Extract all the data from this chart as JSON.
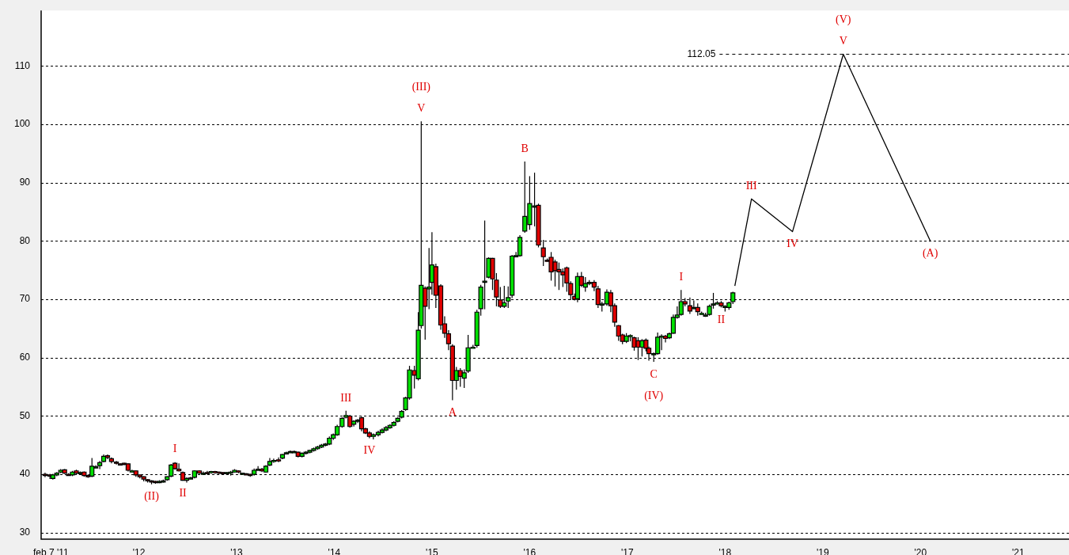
{
  "chart_data": {
    "type": "candlestick",
    "x": [
      2011.04,
      2011.09,
      2011.12,
      2011.16,
      2011.2,
      2011.24,
      2011.28,
      2011.32,
      2011.36,
      2011.4,
      2011.44,
      2011.48,
      2011.52,
      2011.56,
      2011.6,
      2011.64,
      2011.68,
      2011.72,
      2011.77,
      2011.81,
      2011.85,
      2011.89,
      2011.93,
      2011.97,
      2012.01,
      2012.05,
      2012.09,
      2012.13,
      2012.17,
      2012.21,
      2012.25,
      2012.29,
      2012.33,
      2012.37,
      2012.41,
      2012.45,
      2012.49,
      2012.53,
      2012.57,
      2012.62,
      2012.66,
      2012.7,
      2012.74,
      2012.78,
      2012.82,
      2012.86,
      2012.9,
      2012.94,
      2012.98,
      2013.02,
      2013.06,
      2013.1,
      2013.14,
      2013.18,
      2013.22,
      2013.26,
      2013.3,
      2013.34,
      2013.38,
      2013.43,
      2013.47,
      2013.51,
      2013.55,
      2013.59,
      2013.63,
      2013.67,
      2013.71,
      2013.75,
      2013.79,
      2013.83,
      2013.87,
      2013.91,
      2013.95,
      2013.99,
      2014.03,
      2014.08,
      2014.12,
      2014.16,
      2014.2,
      2014.24,
      2014.28,
      2014.32,
      2014.36,
      2014.4,
      2014.45,
      2014.49,
      2014.53,
      2014.57,
      2014.61,
      2014.65,
      2014.69,
      2014.73,
      2014.77,
      2014.82,
      2014.86,
      2014.89,
      2014.93,
      2014.97,
      2015.0,
      2015.04,
      2015.09,
      2015.13,
      2015.17,
      2015.21,
      2015.25,
      2015.29,
      2015.33,
      2015.37,
      2015.42,
      2015.46,
      2015.5,
      2015.54,
      2015.58,
      2015.62,
      2015.66,
      2015.7,
      2015.74,
      2015.78,
      2015.82,
      2015.86,
      2015.9,
      2015.95,
      2016.0,
      2016.05,
      2016.09,
      2016.14,
      2016.18,
      2016.22,
      2016.26,
      2016.3,
      2016.34,
      2016.38,
      2016.42,
      2016.46,
      2016.49,
      2016.53,
      2016.57,
      2016.61,
      2016.66,
      2016.7,
      2016.74,
      2016.79,
      2016.83,
      2016.87,
      2016.91,
      2016.95,
      2016.99,
      2017.03,
      2017.07,
      2017.11,
      2017.15,
      2017.19,
      2017.22,
      2017.27,
      2017.31,
      2017.35,
      2017.39,
      2017.43,
      2017.47,
      2017.51,
      2017.55,
      2017.59,
      2017.64,
      2017.68,
      2017.72,
      2017.76,
      2017.8,
      2017.84,
      2017.88,
      2017.92,
      2017.96,
      2018.0,
      2018.04,
      2018.08
    ],
    "ohlc": [
      [
        40,
        40.3,
        39.5,
        39.9
      ],
      [
        39.9,
        40.1,
        39.2,
        39.7
      ],
      [
        39.3,
        40.1,
        39.1,
        39.9
      ],
      [
        39.9,
        40.4,
        39.7,
        40.2
      ],
      [
        40.4,
        40.9,
        40.2,
        40.7
      ],
      [
        40.8,
        40.9,
        40.1,
        40.2
      ],
      [
        40,
        40.2,
        39.8,
        39.9
      ],
      [
        39.9,
        40.6,
        39.7,
        40.4
      ],
      [
        40.6,
        40.8,
        39.9,
        40.2
      ],
      [
        40.3,
        40.5,
        40,
        40.3
      ],
      [
        40.4,
        40.5,
        39.6,
        39.8
      ],
      [
        39.8,
        40,
        39.4,
        39.7
      ],
      [
        39.7,
        42.8,
        39.5,
        41.4
      ],
      [
        41.3,
        41.6,
        41.1,
        41.3
      ],
      [
        41.5,
        42.3,
        40.9,
        42
      ],
      [
        42.2,
        43.4,
        42.1,
        43.1
      ],
      [
        43.2,
        43.4,
        42.6,
        42.9
      ],
      [
        42.7,
        42.9,
        41.9,
        42.2
      ],
      [
        42.1,
        42.3,
        41.7,
        41.9
      ],
      [
        41.8,
        41.9,
        41.6,
        41.7
      ],
      [
        41.9,
        42,
        41.6,
        41.8
      ],
      [
        41.8,
        41.9,
        40.5,
        40.7
      ],
      [
        40.6,
        40.8,
        40.4,
        40.6
      ],
      [
        40.6,
        40.7,
        39.6,
        39.9
      ],
      [
        39.9,
        40,
        39.3,
        39.6
      ],
      [
        39.6,
        39.7,
        38.8,
        39.2
      ],
      [
        39.1,
        39.2,
        38.6,
        38.9
      ],
      [
        38.9,
        39,
        38.3,
        38.8
      ],
      [
        38.8,
        38.9,
        38.4,
        38.7
      ],
      [
        38.8,
        39,
        38.5,
        38.8
      ],
      [
        38.9,
        39.1,
        38.6,
        38.9
      ],
      [
        39.1,
        39.7,
        38.9,
        39.6
      ],
      [
        39.7,
        41.8,
        39.5,
        41.6
      ],
      [
        41.9,
        42.1,
        40.8,
        41
      ],
      [
        40.9,
        41.9,
        40.5,
        40.6
      ],
      [
        40.3,
        40.5,
        38.9,
        39
      ],
      [
        39,
        39.5,
        38.6,
        39.3
      ],
      [
        39.4,
        39.6,
        39.2,
        39.4
      ],
      [
        39.5,
        40.7,
        39.3,
        40.6
      ],
      [
        40.6,
        40.7,
        40.1,
        40.2
      ],
      [
        40.2,
        40.5,
        40.1,
        40.2
      ],
      [
        40.3,
        40.6,
        40.1,
        40.2
      ],
      [
        40.3,
        40.6,
        40.1,
        40.5
      ],
      [
        40.5,
        40.6,
        40.1,
        40.3
      ],
      [
        40.4,
        40.5,
        40,
        40.2
      ],
      [
        40.3,
        40.4,
        39.9,
        40.2
      ],
      [
        40.3,
        40.4,
        40.1,
        40.3
      ],
      [
        40.2,
        40.6,
        39.8,
        40.4
      ],
      [
        40.4,
        40.9,
        40.3,
        40.7
      ],
      [
        40.6,
        40.7,
        40.2,
        40.4
      ],
      [
        40.2,
        40.3,
        40,
        40.2
      ],
      [
        40.1,
        40.2,
        39.9,
        40
      ],
      [
        40,
        40.1,
        39.6,
        39.8
      ],
      [
        40,
        41,
        39.8,
        40.7
      ],
      [
        40.8,
        41.4,
        40.7,
        40.9
      ],
      [
        40.9,
        41.1,
        40.4,
        40.6
      ],
      [
        40.4,
        41.6,
        40.3,
        41.4
      ],
      [
        41.6,
        42.8,
        41.4,
        42.2
      ],
      [
        42.3,
        42.7,
        42,
        42.4
      ],
      [
        42.5,
        42.9,
        42.1,
        42.3
      ],
      [
        42.8,
        43.5,
        42.6,
        43.4
      ],
      [
        43.6,
        43.9,
        43.5,
        43.7
      ],
      [
        43.9,
        44.1,
        43.7,
        43.9
      ],
      [
        43.9,
        44.1,
        43.8,
        43.9
      ],
      [
        43.8,
        43.9,
        42.9,
        43.1
      ],
      [
        43.1,
        43.8,
        42.9,
        43.6
      ],
      [
        43.6,
        44,
        43.4,
        43.8
      ],
      [
        43.8,
        44.2,
        43.6,
        44.1
      ],
      [
        44.1,
        44.6,
        43.9,
        44.4
      ],
      [
        44.4,
        44.9,
        44.2,
        44.7
      ],
      [
        44.7,
        45.2,
        44.5,
        45
      ],
      [
        45,
        45.4,
        44.8,
        45.2
      ],
      [
        45.2,
        46.5,
        45,
        46.2
      ],
      [
        46.2,
        47,
        45.9,
        46.8
      ],
      [
        46.8,
        48.5,
        46.6,
        48.2
      ],
      [
        48.2,
        49.8,
        48,
        49.6
      ],
      [
        49.8,
        50.9,
        49.6,
        50.1
      ],
      [
        50,
        50.2,
        48,
        48.2
      ],
      [
        48.6,
        49.3,
        48.2,
        49.1
      ],
      [
        49.2,
        49.5,
        48.8,
        49.3
      ],
      [
        49.7,
        49.9,
        47.4,
        47.8
      ],
      [
        47.8,
        48,
        46.9,
        47.1
      ],
      [
        47.1,
        47.4,
        46.2,
        46.5
      ],
      [
        46.5,
        47,
        46,
        46.8
      ],
      [
        46.8,
        47.5,
        46.5,
        47.2
      ],
      [
        47.2,
        47.9,
        47,
        47.6
      ],
      [
        47.6,
        48.3,
        47.4,
        48
      ],
      [
        48,
        48.6,
        47.8,
        48.4
      ],
      [
        48.4,
        49.1,
        48.2,
        48.9
      ],
      [
        49.1,
        49.8,
        48.9,
        49.6
      ],
      [
        49.8,
        51,
        49.6,
        50.8
      ],
      [
        51.1,
        53.3,
        50.9,
        53.1
      ],
      [
        53.1,
        58.6,
        52.8,
        57.9
      ],
      [
        57.8,
        58.6,
        54.7,
        57
      ],
      [
        56.4,
        67.8,
        56.1,
        64.7
      ],
      [
        65.5,
        100.5,
        65,
        72.4
      ],
      [
        71.9,
        72.2,
        63.1,
        68.8
      ],
      [
        71.8,
        78.8,
        68.3,
        72.1
      ],
      [
        72.9,
        81.5,
        70.8,
        75.9
      ],
      [
        75.6,
        76.1,
        68.5,
        70.7
      ],
      [
        72.3,
        72.6,
        64.8,
        65.6
      ],
      [
        65.8,
        67.1,
        63.4,
        64.2
      ],
      [
        64.1,
        64.7,
        61.3,
        62.4
      ],
      [
        62,
        62.3,
        52.7,
        56.1
      ],
      [
        56.1,
        58.4,
        54.5,
        57.8
      ],
      [
        57.8,
        58.2,
        55,
        56.8
      ],
      [
        56.5,
        58,
        54.8,
        57.4
      ],
      [
        57.7,
        63.9,
        57.4,
        61.7
      ],
      [
        61.8,
        62.2,
        61.6,
        61.8
      ],
      [
        62.1,
        68.2,
        61.7,
        67.8
      ],
      [
        68.4,
        72.5,
        67.2,
        72.1
      ],
      [
        72.9,
        83.5,
        68.3,
        73.1
      ],
      [
        73.8,
        77.2,
        73.6,
        77
      ],
      [
        77,
        77.1,
        71.6,
        73.5
      ],
      [
        73.3,
        74.5,
        68.8,
        70.4
      ],
      [
        69.9,
        72.1,
        68.5,
        68.8
      ],
      [
        68.8,
        72.3,
        68.5,
        69.4
      ],
      [
        69.7,
        72.2,
        68.5,
        70.3
      ],
      [
        70.7,
        77.6,
        70.2,
        77.4
      ],
      [
        77.5,
        78.1,
        77.3,
        77.5
      ],
      [
        77.5,
        81,
        77.3,
        80.6
      ],
      [
        81.7,
        93.6,
        81.4,
        84.2
      ],
      [
        82.8,
        91.1,
        81.9,
        86.4
      ],
      [
        85.9,
        91.7,
        82.5,
        86
      ],
      [
        86.1,
        86.4,
        78.9,
        79.3
      ],
      [
        78.8,
        80.2,
        75.7,
        77.3
      ],
      [
        76.7,
        77,
        76.5,
        76.6
      ],
      [
        77.2,
        78.1,
        73.2,
        74.7
      ],
      [
        76.4,
        76.8,
        72.2,
        74.9
      ],
      [
        75.1,
        76.3,
        71.6,
        74.7
      ],
      [
        74.7,
        75.3,
        72.1,
        74.2
      ],
      [
        75.4,
        75.6,
        71.3,
        72.8
      ],
      [
        72.7,
        73.1,
        69.9,
        70.8
      ],
      [
        70.5,
        71,
        69.8,
        70
      ],
      [
        70.1,
        74.6,
        69.5,
        73.9
      ],
      [
        73.9,
        74.7,
        72.1,
        72.4
      ],
      [
        72.1,
        73.8,
        71.3,
        72.7
      ],
      [
        72.9,
        73.3,
        72.4,
        72.9
      ],
      [
        72.9,
        73.3,
        71.4,
        72.1
      ],
      [
        71.8,
        72.3,
        68.5,
        69.1
      ],
      [
        69.2,
        69.6,
        67.9,
        69.2
      ],
      [
        69.2,
        71.7,
        68.9,
        71.2
      ],
      [
        71.1,
        71.6,
        67.8,
        68.9
      ],
      [
        68.9,
        69.3,
        65.3,
        66.1
      ],
      [
        65.5,
        65.6,
        62.9,
        63.7
      ],
      [
        63.9,
        64.1,
        62.3,
        62.8
      ],
      [
        62.8,
        64.2,
        62.5,
        63.7
      ],
      [
        63.8,
        64,
        62.8,
        63.8
      ],
      [
        63.4,
        63.6,
        61.2,
        61.8
      ],
      [
        62.9,
        63.5,
        59.6,
        61.8
      ],
      [
        61.8,
        63.2,
        60.2,
        62.9
      ],
      [
        63,
        63.3,
        61.1,
        61.6
      ],
      [
        61.6,
        61.9,
        59.5,
        60.7
      ],
      [
        60.7,
        60.9,
        59.3,
        60.7
      ],
      [
        60.7,
        64.3,
        60.5,
        63.5
      ],
      [
        63.5,
        64,
        61.3,
        63.7
      ],
      [
        63.7,
        63.9,
        62.6,
        63.3
      ],
      [
        63.4,
        64.3,
        63.2,
        64.1
      ],
      [
        64.2,
        67.4,
        64.1,
        66.9
      ],
      [
        66.9,
        68.8,
        66.7,
        67.3
      ],
      [
        67.4,
        71.6,
        67.2,
        69.6
      ],
      [
        69.6,
        70.2,
        68.8,
        69.2
      ],
      [
        68.9,
        70.3,
        67.5,
        68
      ],
      [
        68.6,
        69.8,
        68.3,
        68.6
      ],
      [
        68.6,
        69.3,
        67.2,
        67.9
      ],
      [
        67.6,
        67.9,
        67.4,
        67.6
      ],
      [
        67.3,
        67.7,
        67,
        67.3
      ],
      [
        67.4,
        69.1,
        67.2,
        68.8
      ],
      [
        69,
        71.1,
        68.4,
        69.2
      ],
      [
        69.4,
        69.7,
        69.1,
        69.4
      ],
      [
        69.4,
        69.7,
        68.6,
        68.9
      ],
      [
        68.8,
        69,
        67.9,
        68.8
      ],
      [
        68.6,
        69.6,
        68.2,
        69.4
      ],
      [
        69.6,
        71.3,
        69.2,
        71.1
      ]
    ],
    "series": [
      {
        "type": "line",
        "color": "#000000",
        "x": [
          2018.1,
          2018.27,
          2018.69,
          2019.21,
          2020.1
        ],
        "values": [
          72.3,
          87.2,
          81.6,
          112.0,
          80.0
        ]
      }
    ],
    "xlim": [
      2011.0,
      2021.52
    ],
    "xticks": [
      {
        "value": 2011.1,
        "label": "feb 7 '11"
      },
      {
        "value": 2012,
        "label": "'12"
      },
      {
        "value": 2013,
        "label": "'13"
      },
      {
        "value": 2014,
        "label": "'14"
      },
      {
        "value": 2015,
        "label": "'15"
      },
      {
        "value": 2016,
        "label": "'16"
      },
      {
        "value": 2017,
        "label": "'17"
      },
      {
        "value": 2018,
        "label": "'18"
      },
      {
        "value": 2019,
        "label": "'19"
      },
      {
        "value": 2020,
        "label": "'20"
      },
      {
        "value": 2021,
        "label": "'21"
      }
    ],
    "ylim": [
      28.9,
      119.5
    ],
    "yticks": [
      30,
      40,
      50,
      60,
      70,
      80,
      90,
      100,
      110
    ],
    "grid": "y",
    "ref_lines": [
      {
        "axis": "y",
        "value": 112.05,
        "label": "112.05",
        "line_style": "dashed"
      }
    ],
    "annotations": [
      {
        "text": "(II)",
        "x": 2012.13,
        "y": 38.3
      },
      {
        "text": "I",
        "x": 2012.37,
        "y": 42.1
      },
      {
        "text": "II",
        "x": 2012.45,
        "y": 38.9
      },
      {
        "text": "III",
        "x": 2014.12,
        "y": 50.9
      },
      {
        "text": "IV",
        "x": 2014.36,
        "y": 46.2
      },
      {
        "text": "V",
        "x": 2014.89,
        "y": 100.5
      },
      {
        "text": "(III)",
        "x": 2014.89,
        "y": 100.5
      },
      {
        "text": "A",
        "x": 2015.21,
        "y": 52.7
      },
      {
        "text": "B",
        "x": 2015.95,
        "y": 93.6
      },
      {
        "text": "C",
        "x": 2017.27,
        "y": 59.3
      },
      {
        "text": "(IV)",
        "x": 2017.27,
        "y": 59.3
      },
      {
        "text": "I",
        "x": 2017.55,
        "y": 71.6
      },
      {
        "text": "II",
        "x": 2017.96,
        "y": 68.6
      },
      {
        "text": "III",
        "x": 2018.27,
        "y": 87.2
      },
      {
        "text": "IV",
        "x": 2018.69,
        "y": 81.6
      },
      {
        "text": "V",
        "x": 2019.21,
        "y": 112.0
      },
      {
        "text": "(V)",
        "x": 2019.21,
        "y": 112.0
      },
      {
        "text": "(A)",
        "x": 2020.1,
        "y": 80.0
      }
    ]
  }
}
